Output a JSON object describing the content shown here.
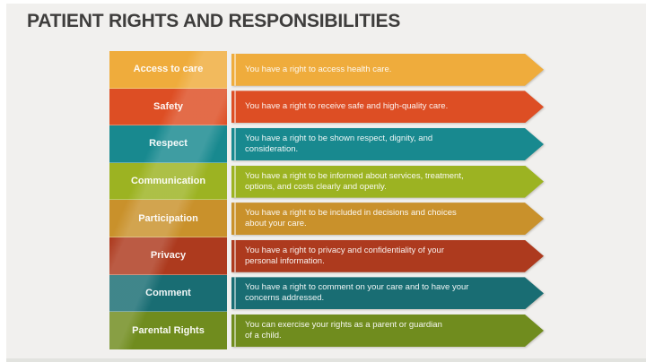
{
  "slide": {
    "title": "PATIENT RIGHTS AND RESPONSIBILITIES",
    "title_color": "#3e3d3c",
    "background_color": "#f1f0ee"
  },
  "rows": [
    {
      "label": "Access to care",
      "text": "You have a right to access health care.",
      "color": "#EFAC3C"
    },
    {
      "label": "Safety",
      "text": "You have a right to receive safe and high-quality care.",
      "color": "#DD4E24"
    },
    {
      "label": "Respect",
      "text": "You have a right to be shown respect, dignity, and\nconsideration.",
      "color": "#18898F"
    },
    {
      "label": "Communication",
      "text": "You have a right to be informed about services, treatment,\noptions, and costs clearly and openly.",
      "color": "#9CB322"
    },
    {
      "label": "Participation",
      "text": "You have a right to be included in decisions and choices\nabout your care.",
      "color": "#C9912B"
    },
    {
      "label": "Privacy",
      "text": "You have a right to privacy and confidentiality of your\npersonal information.",
      "color": "#AD3A1E"
    },
    {
      "label": "Comment",
      "text": "You have a right to comment on your care and to have your\nconcerns addressed.",
      "color": "#196D73"
    },
    {
      "label": "Parental Rights",
      "text": "You can exercise your rights as a parent or guardian\nof a child.",
      "color": "#708C1E"
    }
  ]
}
